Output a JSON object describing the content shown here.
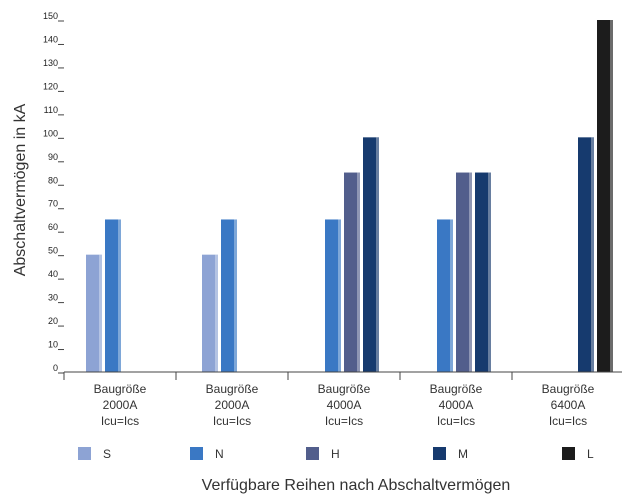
{
  "chart_data": {
    "type": "bar",
    "ylabel": "Abschaltvermögen in kA",
    "xlabel": "Verfügbare Reihen nach Abschaltvermögen",
    "ylim": [
      0,
      150
    ],
    "yticks": [
      0,
      10,
      20,
      30,
      40,
      50,
      60,
      70,
      80,
      90,
      100,
      110,
      120,
      130,
      140,
      150
    ],
    "grid": false,
    "legend_position": "bottom",
    "categories": [
      [
        "Baugröße",
        "2000A",
        "Icu=Ics"
      ],
      [
        "Baugröße",
        "2000A",
        "Icu=Ics"
      ],
      [
        "Baugröße",
        "4000A",
        "Icu=Ics"
      ],
      [
        "Baugröße",
        "4000A",
        "Icu=Ics"
      ],
      [
        "Baugröße",
        "6400A",
        "Icu=Ics"
      ]
    ],
    "series": [
      {
        "name": "S",
        "color": "#8da3d4",
        "values": [
          50,
          50,
          null,
          null,
          null
        ]
      },
      {
        "name": "N",
        "color": "#3a78c4",
        "values": [
          65,
          65,
          65,
          65,
          null
        ]
      },
      {
        "name": "H",
        "color": "#525e8c",
        "values": [
          null,
          null,
          85,
          85,
          null
        ]
      },
      {
        "name": "M",
        "color": "#163a6e",
        "values": [
          null,
          null,
          100,
          85,
          100
        ]
      },
      {
        "name": "L",
        "color": "#1c1c1c",
        "values": [
          null,
          null,
          null,
          null,
          150
        ]
      }
    ]
  }
}
